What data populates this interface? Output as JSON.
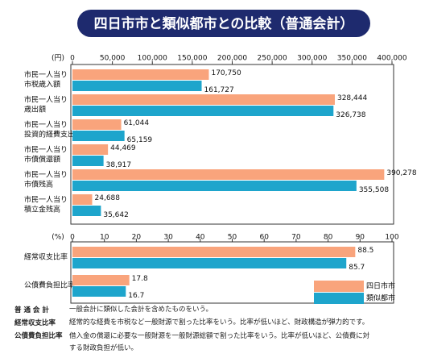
{
  "title": "四日市市と類似都市との比較（普通会計）",
  "chart_data": [
    {
      "type": "barh",
      "unit": "(円)",
      "categories": [
        [
          "市民一人当り",
          "市税歳入額"
        ],
        [
          "市民一人当り",
          "歳出額"
        ],
        [
          "市民一人当り",
          "投資的経費支出額"
        ],
        [
          "市民一人当り",
          "市債償還額"
        ],
        [
          "市民一人当り",
          "市債残高"
        ],
        [
          "市民一人当り",
          "積立金残高"
        ]
      ],
      "series": [
        {
          "color": "#f9a47c",
          "values": [
            170750,
            328444,
            61044,
            44469,
            390278,
            24688
          ],
          "value_labels": [
            "170,750",
            "328,444",
            "61,044",
            "44,469",
            "390,278",
            "24,688"
          ]
        },
        {
          "color": "#1ea5cc",
          "values": [
            161727,
            326738,
            65159,
            38917,
            355508,
            35642
          ],
          "value_labels": [
            "161,727",
            "326,738",
            "65,159",
            "38,917",
            "355,508",
            "35,642"
          ]
        }
      ],
      "xlim": [
        0,
        400000
      ],
      "xticks": [
        0,
        {
          "value": 50000,
          "label": "50,000"
        },
        {
          "value": 100000,
          "label": "100,000"
        },
        {
          "value": 150000,
          "label": "150,000"
        },
        {
          "value": 200000,
          "label": "200,000"
        },
        {
          "value": 250000,
          "label": "250,000"
        },
        {
          "value": 300000,
          "label": "300,000"
        },
        {
          "value": 350000,
          "label": "350,000"
        },
        {
          "value": 400000,
          "label": "400,000"
        }
      ]
    },
    {
      "type": "barh",
      "unit": "(%)",
      "categories": [
        [
          "経常収支比率"
        ],
        [
          "公債費負担比率"
        ]
      ],
      "series": [
        {
          "name": "四日市市",
          "color": "#f9a47c",
          "values": [
            88.5,
            17.8
          ]
        },
        {
          "name": "類似都市",
          "color": "#1ea5cc",
          "values": [
            85.7,
            16.7
          ]
        }
      ],
      "xlim": [
        0,
        100
      ],
      "xticks": [
        0,
        10,
        20,
        30,
        40,
        50,
        60,
        70,
        80,
        90,
        100
      ],
      "legend": "lower right"
    }
  ],
  "notes": [
    {
      "term": "普 通 会 計",
      "text": "一般会計に類似した会計を含めたものをいう。"
    },
    {
      "term": "経常収支比率",
      "text": "経常的な経費を市税など一般財源で割った比率をいう。比率が低いほど、財政構造が弾力的です。"
    },
    {
      "term": "公債費負担比率",
      "text": "借入金の償還に必要な一般財源を一般財源総額で割った比率をいう。比率が低いほど、公債費に対する財政負担が低い。"
    }
  ]
}
